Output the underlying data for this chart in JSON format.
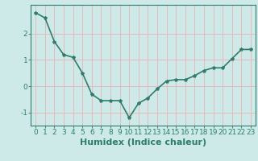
{
  "x": [
    0,
    1,
    2,
    3,
    4,
    5,
    6,
    7,
    8,
    9,
    10,
    11,
    12,
    13,
    14,
    15,
    16,
    17,
    18,
    19,
    20,
    21,
    22,
    23
  ],
  "y": [
    2.8,
    2.6,
    1.7,
    1.2,
    1.1,
    0.5,
    -0.3,
    -0.55,
    -0.55,
    -0.55,
    -1.2,
    -0.65,
    -0.45,
    -0.1,
    0.2,
    0.25,
    0.25,
    0.4,
    0.6,
    0.7,
    0.7,
    1.05,
    1.4,
    1.4
  ],
  "line_color": "#2e7d6e",
  "marker": "*",
  "marker_size": 3,
  "bg_color": "#ceeae8",
  "grid_color": "#e8b8b8",
  "xlabel": "Humidex (Indice chaleur)",
  "xlabel_fontsize": 8,
  "xlim": [
    -0.5,
    23.5
  ],
  "ylim": [
    -1.5,
    3.1
  ],
  "yticks": [
    -1,
    0,
    1,
    2
  ],
  "xticks": [
    0,
    1,
    2,
    3,
    4,
    5,
    6,
    7,
    8,
    9,
    10,
    11,
    12,
    13,
    14,
    15,
    16,
    17,
    18,
    19,
    20,
    21,
    22,
    23
  ],
  "tick_fontsize": 6.5,
  "line_width": 1.2,
  "spine_color": "#2e7d6e",
  "tick_color": "#2e7d6e",
  "label_color": "#2e7d6e"
}
